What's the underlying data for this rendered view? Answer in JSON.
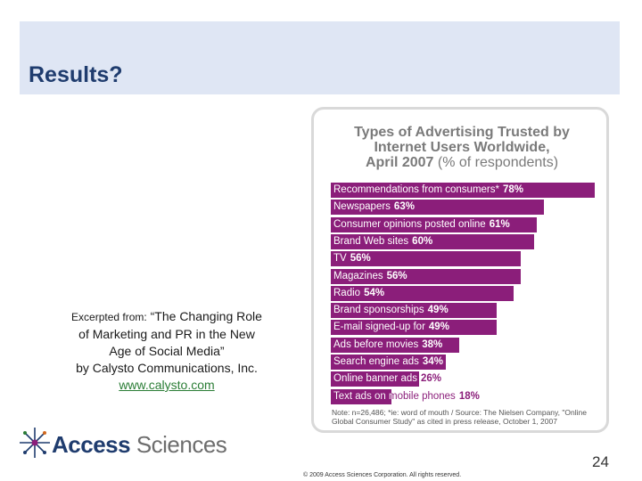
{
  "slide": {
    "title": "Results?",
    "excerpt_intro": "Excerpted from:",
    "excerpt_title_line1": "“The Changing Role",
    "excerpt_title_line2": "of Marketing and PR in the New",
    "excerpt_title_line3": "Age of Social Media”",
    "excerpt_author": "by Calysto Communications, Inc.",
    "excerpt_link": "www.calysto.com",
    "logo_word1": "Access",
    "logo_word2": "Sciences",
    "footer": "© 2009 Access Sciences Corporation. All rights reserved.",
    "page_number": "24",
    "colors": {
      "bar": "#8b1e7a",
      "header_band": "#dfe6f4",
      "title": "#1f3c6e",
      "link": "#2a7d35"
    }
  },
  "chart_data": {
    "type": "bar",
    "orientation": "horizontal",
    "title_line1": "Types of Advertising Trusted by",
    "title_line2": "Internet Users Worldwide,",
    "title_line3": "April 2007",
    "title_line3_suffix": "(% of respondents)",
    "categories": [
      "Recommendations from consumers*",
      "Newspapers",
      "Consumer opinions posted online",
      "Brand Web sites",
      "TV",
      "Magazines",
      "Radio",
      "Brand sponsorships",
      "E-mail signed-up for",
      "Ads before movies",
      "Search engine ads",
      "Online banner ads",
      "Text ads on mobile phones"
    ],
    "values": [
      78,
      63,
      61,
      60,
      56,
      56,
      54,
      49,
      49,
      38,
      34,
      26,
      18
    ],
    "value_labels": [
      "78%",
      "63%",
      "61%",
      "60%",
      "56%",
      "56%",
      "54%",
      "49%",
      "49%",
      "38%",
      "34%",
      "26%",
      "18%"
    ],
    "xlim": [
      0,
      78
    ],
    "note": "Note: n=26,486; *ie: word of mouth / Source: The Nielsen Company, \"Online Global Consumer Study\" as cited in press release, October 1, 2007"
  }
}
